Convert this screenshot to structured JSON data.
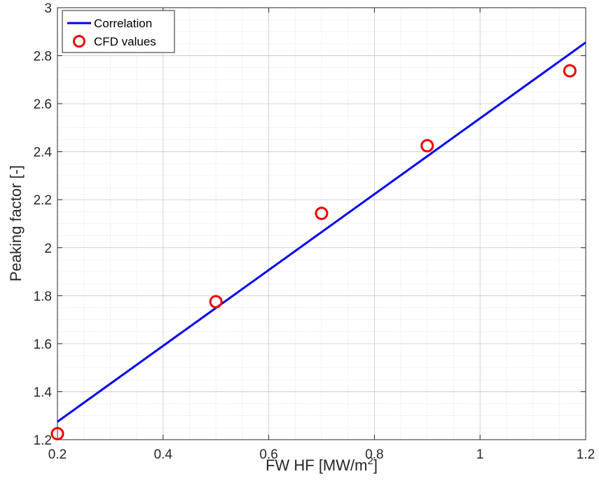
{
  "chart_data": {
    "type": "line",
    "title": "",
    "xlabel": "FW HF [MW/m",
    "xlabel_sup": "2",
    "xlabel_end": "]",
    "ylabel": "Peaking factor [-]",
    "xlim": [
      0.2,
      1.2
    ],
    "ylim": [
      1.2,
      3.0
    ],
    "xticks": [
      0.2,
      0.4,
      0.6,
      0.8,
      1.0,
      1.2
    ],
    "xtick_labels": [
      "0.2",
      "0.4",
      "0.6",
      "0.8",
      "1",
      "1.2"
    ],
    "yticks": [
      1.2,
      1.4,
      1.6,
      1.8,
      2.0,
      2.2,
      2.4,
      2.6,
      2.8,
      3.0
    ],
    "ytick_labels": [
      "1.2",
      "1.4",
      "1.6",
      "1.8",
      "2",
      "2.2",
      "2.4",
      "2.6",
      "2.8",
      "3"
    ],
    "grid": true,
    "minor_grid": true,
    "legend_position": "top-left",
    "series": [
      {
        "name": "Correlation",
        "kind": "line",
        "color": "#0000ee",
        "x": [
          0.2,
          1.2
        ],
        "y": [
          1.275,
          2.855
        ]
      },
      {
        "name": "CFD values",
        "kind": "scatter",
        "marker": "circle",
        "color": "#ee0000",
        "x": [
          0.2,
          0.5,
          0.7,
          0.9,
          1.17
        ],
        "y": [
          1.225,
          1.775,
          2.143,
          2.425,
          2.737
        ]
      }
    ]
  }
}
